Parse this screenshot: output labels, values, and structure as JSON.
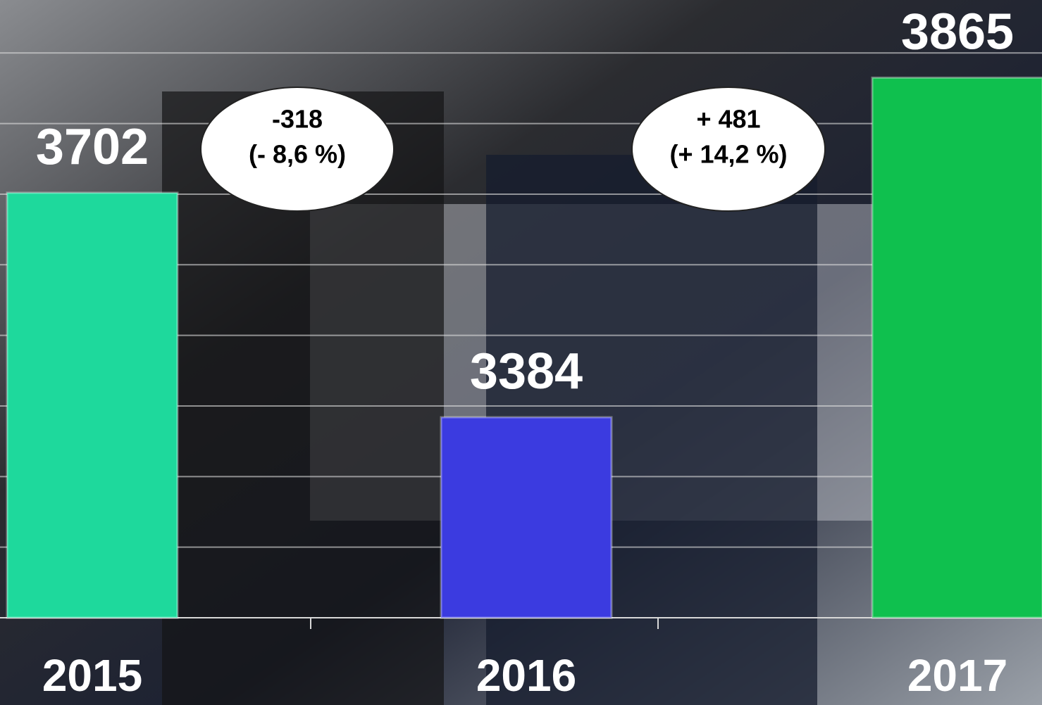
{
  "chart_data": {
    "type": "bar",
    "categories": [
      "2015",
      "2016",
      "2017"
    ],
    "values": [
      3702,
      3384,
      3865
    ],
    "colors": [
      "#1ed99c",
      "#3b3be0",
      "#0fc04e"
    ],
    "ylim": [
      3100,
      3975
    ],
    "yticks": [
      3200,
      3300,
      3400,
      3500,
      3600,
      3700,
      3800,
      3900
    ],
    "grid": true,
    "annotations": [
      {
        "lines": [
          "-318",
          "(- 8,6 %)"
        ]
      },
      {
        "lines": [
          "+ 481",
          "(+ 14,2 %)"
        ]
      }
    ]
  }
}
